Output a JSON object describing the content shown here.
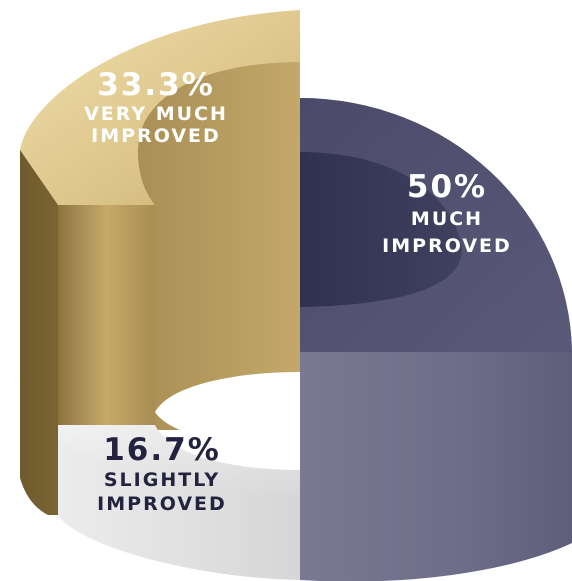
{
  "chart_data": {
    "type": "pie",
    "title": "",
    "slices": [
      {
        "label_line1": "MUCH",
        "label_line2": "IMPROVED",
        "value": 50,
        "value_text": "50%",
        "color": "#525170",
        "text_color": "#ffffff"
      },
      {
        "label_line1": "SLIGHTLY",
        "label_line2": "IMPROVED",
        "value": 16.7,
        "value_text": "16.7%",
        "color": "#e2e2e2",
        "text_color": "#23233f"
      },
      {
        "label_line1": "VERY MUCH",
        "label_line2": "IMPROVED",
        "value": 33.3,
        "value_text": "33.3%",
        "color": "#b29a5c",
        "text_color": "#ffffff"
      }
    ]
  }
}
